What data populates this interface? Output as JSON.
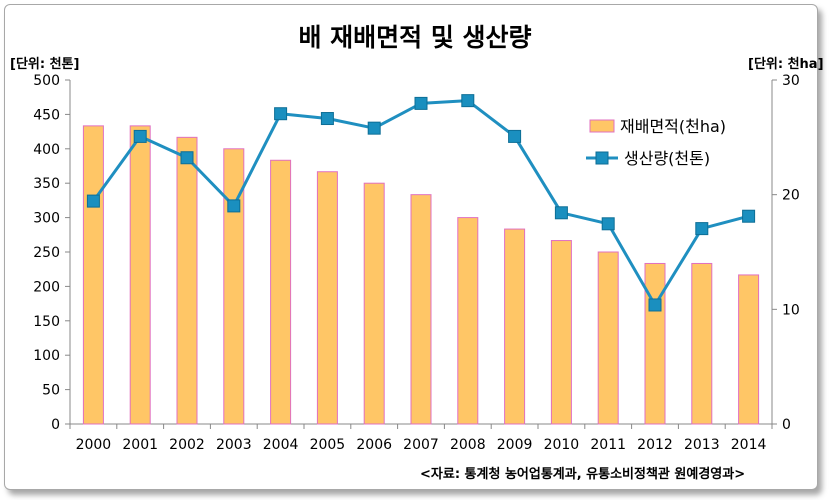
{
  "chart_data": {
    "type": "bar+line",
    "title": "배 재배면적 및 생산량",
    "left_unit": "[단위: 천톤]",
    "right_unit": "[단위: 천ha]",
    "source": "<자료: 통계청 농어업통계과, 유통소비정책관 원예경영과>",
    "categories": [
      "2000",
      "2001",
      "2002",
      "2003",
      "2004",
      "2005",
      "2006",
      "2007",
      "2008",
      "2009",
      "2010",
      "2011",
      "2012",
      "2013",
      "2014"
    ],
    "left_axis": {
      "min": 0,
      "max": 500,
      "step": 50,
      "ticks": [
        "0",
        "50",
        "100",
        "150",
        "200",
        "250",
        "300",
        "350",
        "400",
        "450",
        "500"
      ]
    },
    "right_axis": {
      "min": 0,
      "max": 30,
      "step": 10,
      "ticks": [
        "0",
        "10",
        "20",
        "30"
      ]
    },
    "series": [
      {
        "name": "재배면적(천ha)",
        "type": "bar",
        "axis": "right",
        "values": [
          26.0,
          26.0,
          25.0,
          24.0,
          23.0,
          22.0,
          21.0,
          20.0,
          18.0,
          17.0,
          16.0,
          15.0,
          14.0,
          14.0,
          13.0
        ]
      },
      {
        "name": "생산량(천톤)",
        "type": "line",
        "axis": "left",
        "values": [
          324,
          418,
          387,
          317,
          451,
          444,
          430,
          466,
          470,
          418,
          307,
          291,
          173,
          284,
          302
        ]
      }
    ],
    "colors": {
      "bar_fill": "#ffc666",
      "bar_stroke": "#e070c0",
      "line": "#1f8fc0",
      "marker": "#1a8fbf"
    },
    "grid": false,
    "legend_position": "right"
  }
}
